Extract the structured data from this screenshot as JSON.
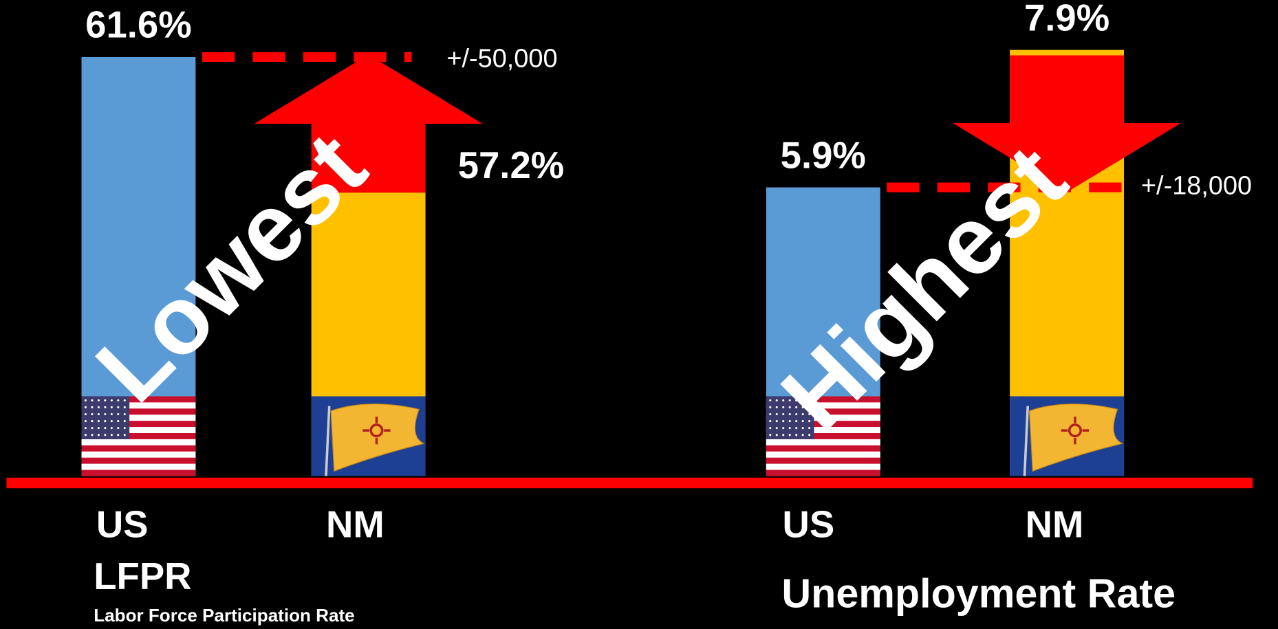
{
  "chart_data": [
    {
      "type": "bar",
      "title": "LFPR",
      "subtitle": "Labor Force Participation Rate",
      "categories": [
        "US",
        "NM"
      ],
      "values": [
        61.6,
        57.2
      ],
      "value_labels": [
        "61.6%",
        "57.2%"
      ],
      "colors": [
        "#5b9bd5",
        "#ffc000"
      ],
      "ylim": [
        48,
        62.5
      ],
      "annotation": "+/-50,000",
      "overlay_text": "Lowest"
    },
    {
      "type": "bar",
      "title": "Unemployment Rate",
      "categories": [
        "US",
        "NM"
      ],
      "values": [
        5.9,
        7.9
      ],
      "value_labels": [
        "5.9%",
        "7.9%"
      ],
      "colors": [
        "#5b9bd5",
        "#ffc000"
      ],
      "ylim": [
        1.7,
        8.2
      ],
      "annotation": "+/-18,000",
      "overlay_text": "Highest"
    }
  ]
}
